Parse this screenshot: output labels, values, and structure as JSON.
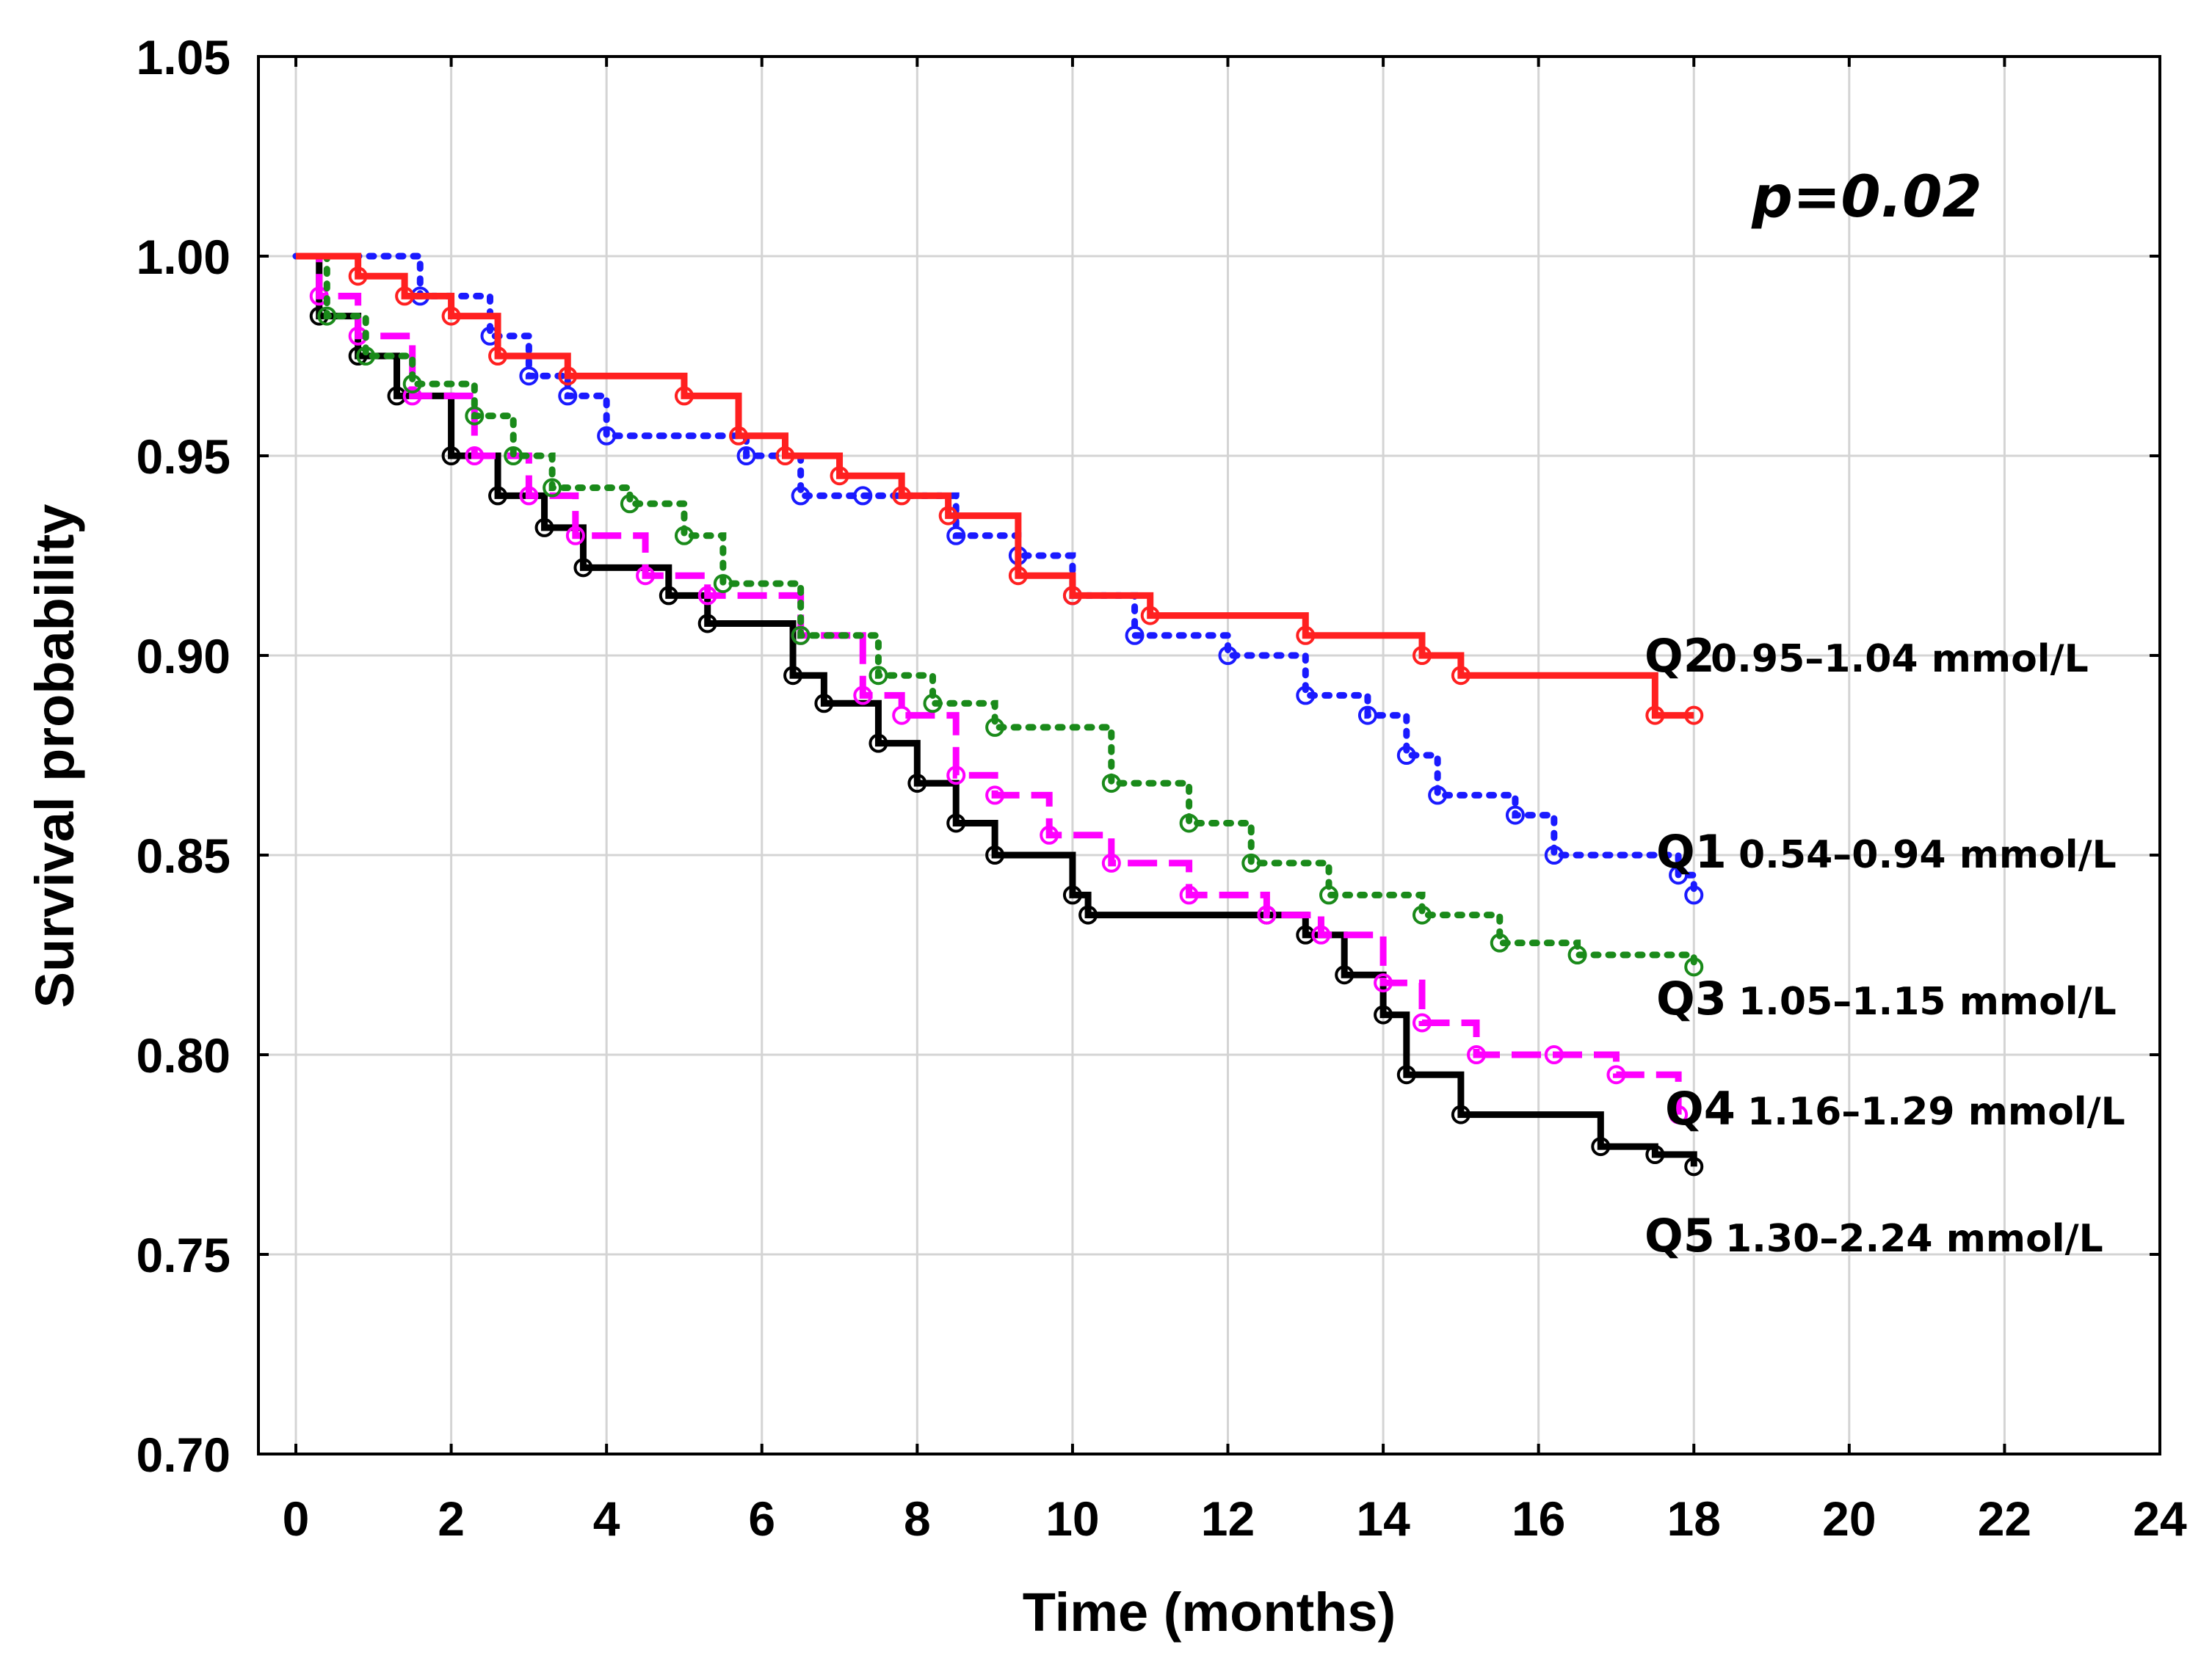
{
  "chart_data": {
    "type": "line",
    "step": true,
    "xlabel": "Time (months)",
    "ylabel": "Survival probability",
    "xlim": [
      -0.5,
      24
    ],
    "ylim": [
      0.7,
      1.05
    ],
    "xticks": [
      0,
      2,
      4,
      6,
      8,
      10,
      12,
      14,
      16,
      18,
      20,
      22,
      24
    ],
    "yticks": [
      "1.05",
      "1.00",
      "0.95",
      "0.90",
      "0.85",
      "0.80",
      "0.75",
      "0.70"
    ],
    "grid": true,
    "annotation": "p=0.02",
    "series": [
      {
        "name": "Q2",
        "range": "0.95–1.04 mmol/L",
        "color": "#ff2020",
        "style": "solid",
        "x": [
          0,
          0.8,
          1.4,
          2.0,
          2.6,
          3.5,
          5.0,
          5.7,
          6.3,
          7.0,
          7.8,
          8.4,
          9.3,
          10.0,
          11.0,
          13.0,
          14.5,
          15.0,
          17.5,
          18.0
        ],
        "y": [
          1.0,
          0.995,
          0.99,
          0.985,
          0.975,
          0.97,
          0.965,
          0.955,
          0.95,
          0.945,
          0.94,
          0.935,
          0.92,
          0.915,
          0.91,
          0.905,
          0.9,
          0.895,
          0.885,
          0.885
        ]
      },
      {
        "name": "Q1",
        "range": "0.54–0.94 mmol/L",
        "color": "#1a1aff",
        "style": "dotted",
        "x": [
          0,
          1.6,
          2.5,
          3.0,
          3.5,
          4.0,
          5.8,
          6.5,
          7.3,
          8.5,
          9.3,
          10.0,
          10.8,
          12.0,
          13.0,
          13.8,
          14.3,
          14.7,
          15.7,
          16.2,
          17.8,
          18.0
        ],
        "y": [
          1.0,
          0.99,
          0.98,
          0.97,
          0.965,
          0.955,
          0.95,
          0.94,
          0.94,
          0.93,
          0.925,
          0.915,
          0.905,
          0.9,
          0.89,
          0.885,
          0.875,
          0.865,
          0.86,
          0.85,
          0.845,
          0.84
        ]
      },
      {
        "name": "Q3",
        "range": "1.05–1.15 mmol/L",
        "color": "#1a8a1a",
        "style": "dotted",
        "x": [
          0,
          0.4,
          0.9,
          1.5,
          2.3,
          2.8,
          3.3,
          4.3,
          5.0,
          5.5,
          6.5,
          7.5,
          8.2,
          9.0,
          10.5,
          11.5,
          12.3,
          13.3,
          14.5,
          15.5,
          16.5,
          18.0
        ],
        "y": [
          1.0,
          0.985,
          0.975,
          0.968,
          0.96,
          0.95,
          0.942,
          0.938,
          0.93,
          0.918,
          0.905,
          0.895,
          0.888,
          0.882,
          0.868,
          0.858,
          0.848,
          0.84,
          0.835,
          0.828,
          0.825,
          0.822
        ]
      },
      {
        "name": "Q4",
        "range": "1.16–1.29 mmol/L",
        "color": "#ff00ff",
        "style": "dashed",
        "x": [
          0,
          0.3,
          0.8,
          1.5,
          2.3,
          3.0,
          3.6,
          4.5,
          5.3,
          6.5,
          7.3,
          7.8,
          8.5,
          9.0,
          9.7,
          10.5,
          11.5,
          12.5,
          13.2,
          14.0,
          14.5,
          15.2,
          16.2,
          17.0,
          17.8
        ],
        "y": [
          1.0,
          0.99,
          0.98,
          0.965,
          0.95,
          0.94,
          0.93,
          0.92,
          0.915,
          0.905,
          0.89,
          0.885,
          0.87,
          0.865,
          0.855,
          0.848,
          0.84,
          0.835,
          0.83,
          0.818,
          0.808,
          0.8,
          0.8,
          0.795,
          0.785
        ]
      },
      {
        "name": "Q5",
        "range": "1.30–2.24 mmol/L",
        "color": "#000000",
        "style": "solid",
        "x": [
          0,
          0.3,
          0.8,
          1.3,
          2.0,
          2.6,
          3.2,
          3.7,
          4.8,
          5.3,
          6.4,
          6.8,
          7.5,
          8.0,
          8.5,
          9.0,
          10.0,
          10.2,
          12.5,
          13.0,
          13.5,
          14.0,
          14.3,
          15.0,
          16.8,
          17.5,
          18.0
        ],
        "y": [
          1.0,
          0.985,
          0.975,
          0.965,
          0.95,
          0.94,
          0.932,
          0.922,
          0.915,
          0.908,
          0.895,
          0.888,
          0.878,
          0.868,
          0.858,
          0.85,
          0.84,
          0.835,
          0.835,
          0.83,
          0.82,
          0.81,
          0.795,
          0.785,
          0.777,
          0.775,
          0.772
        ]
      }
    ]
  }
}
